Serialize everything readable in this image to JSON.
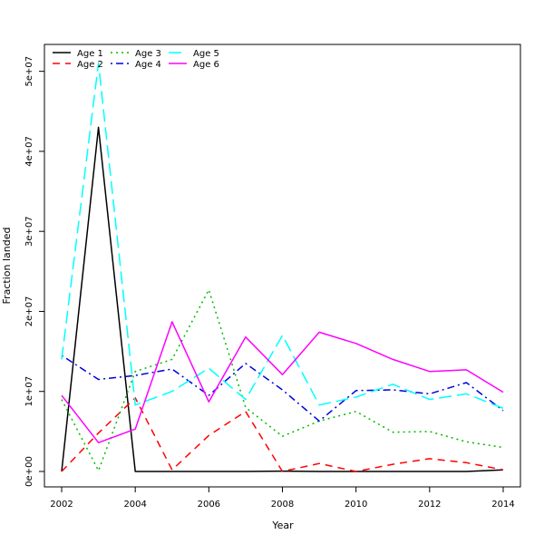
{
  "chart_data": {
    "type": "line",
    "title": "",
    "xlabel": "Year",
    "ylabel": "Fraction landed",
    "x": [
      2002,
      2003,
      2004,
      2005,
      2006,
      2007,
      2008,
      2009,
      2010,
      2011,
      2012,
      2013,
      2014
    ],
    "xlim": [
      2002,
      2014
    ],
    "ylim": [
      0,
      52000000
    ],
    "xticks": [
      2002,
      2004,
      2006,
      2008,
      2010,
      2012,
      2014
    ],
    "xtick_labels": [
      "2002",
      "2004",
      "2006",
      "2008",
      "2010",
      "2012",
      "2014"
    ],
    "yticks": [
      0,
      10000000,
      20000000,
      30000000,
      40000000,
      50000000
    ],
    "ytick_labels": [
      "0e+00",
      "1e+07",
      "2e+07",
      "3e+07",
      "4e+07",
      "5e+07"
    ],
    "grid": false,
    "legend_position": "top-left",
    "series": [
      {
        "name": "Age 1",
        "color": "#000000",
        "dash": "solid",
        "values": [
          0,
          43000000,
          0,
          0,
          0,
          0,
          50000,
          0,
          0,
          0,
          0,
          0,
          200000
        ]
      },
      {
        "name": "Age 2",
        "color": "#ff0000",
        "dash": "dashed",
        "values": [
          0,
          4800000,
          9200000,
          200000,
          4500000,
          7500000,
          0,
          1000000,
          0,
          900000,
          1600000,
          1100000,
          200000
        ]
      },
      {
        "name": "Age 3",
        "color": "#00bb00",
        "dash": "dotted",
        "values": [
          9000000,
          100000,
          12500000,
          14000000,
          22700000,
          8000000,
          4400000,
          6300000,
          7500000,
          4900000,
          5000000,
          3700000,
          3000000
        ]
      },
      {
        "name": "Age 4",
        "color": "#0000dd",
        "dash": "dotdash",
        "values": [
          14500000,
          11500000,
          12000000,
          12800000,
          9500000,
          13500000,
          10200000,
          6300000,
          10100000,
          10200000,
          9700000,
          11100000,
          7600000
        ]
      },
      {
        "name": "Age 5",
        "color": "#00ffff",
        "dash": "longdash",
        "values": [
          14000000,
          51000000,
          8300000,
          10000000,
          12900000,
          9000000,
          17000000,
          8300000,
          9300000,
          10900000,
          9000000,
          9700000,
          7900000
        ]
      },
      {
        "name": "Age 6",
        "color": "#ff00ff",
        "dash": "solid",
        "values": [
          9500000,
          3600000,
          5300000,
          18700000,
          8700000,
          16800000,
          12100000,
          17400000,
          16000000,
          14000000,
          12500000,
          12700000,
          9900000
        ]
      }
    ]
  }
}
